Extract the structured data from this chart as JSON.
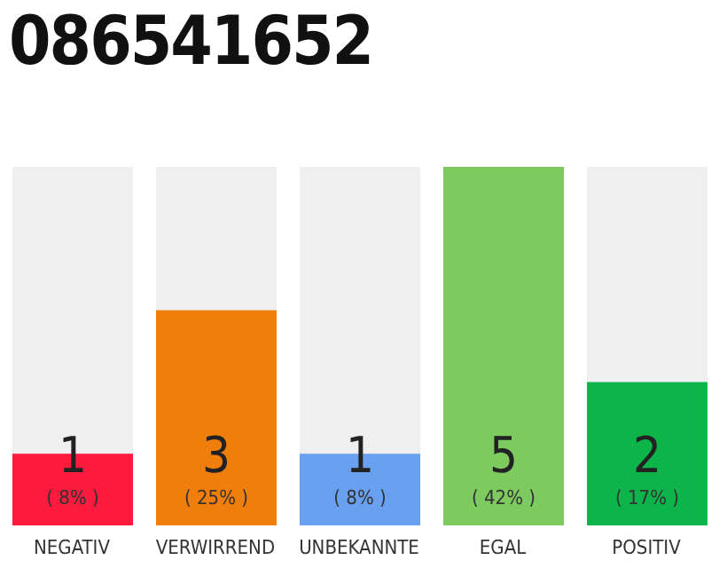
{
  "chart_data": {
    "type": "bar",
    "title": "086541652",
    "categories": [
      "NEGATIV",
      "VERWIRREND",
      "UNBEKANNTE",
      "EGAL",
      "POSITIV"
    ],
    "values": [
      1,
      3,
      1,
      5,
      2
    ],
    "colors": [
      "#fc1a3e",
      "#f07e0c",
      "#6aa0f0",
      "#7dca5f",
      "#0cb44a"
    ],
    "value_labels": [
      "1",
      "3",
      "1",
      "5",
      "2"
    ],
    "annotations": [
      "( 8% )",
      "( 25% )",
      "( 8% )",
      "( 42% )",
      "( 17% )"
    ],
    "tick_labels": "x"
  }
}
